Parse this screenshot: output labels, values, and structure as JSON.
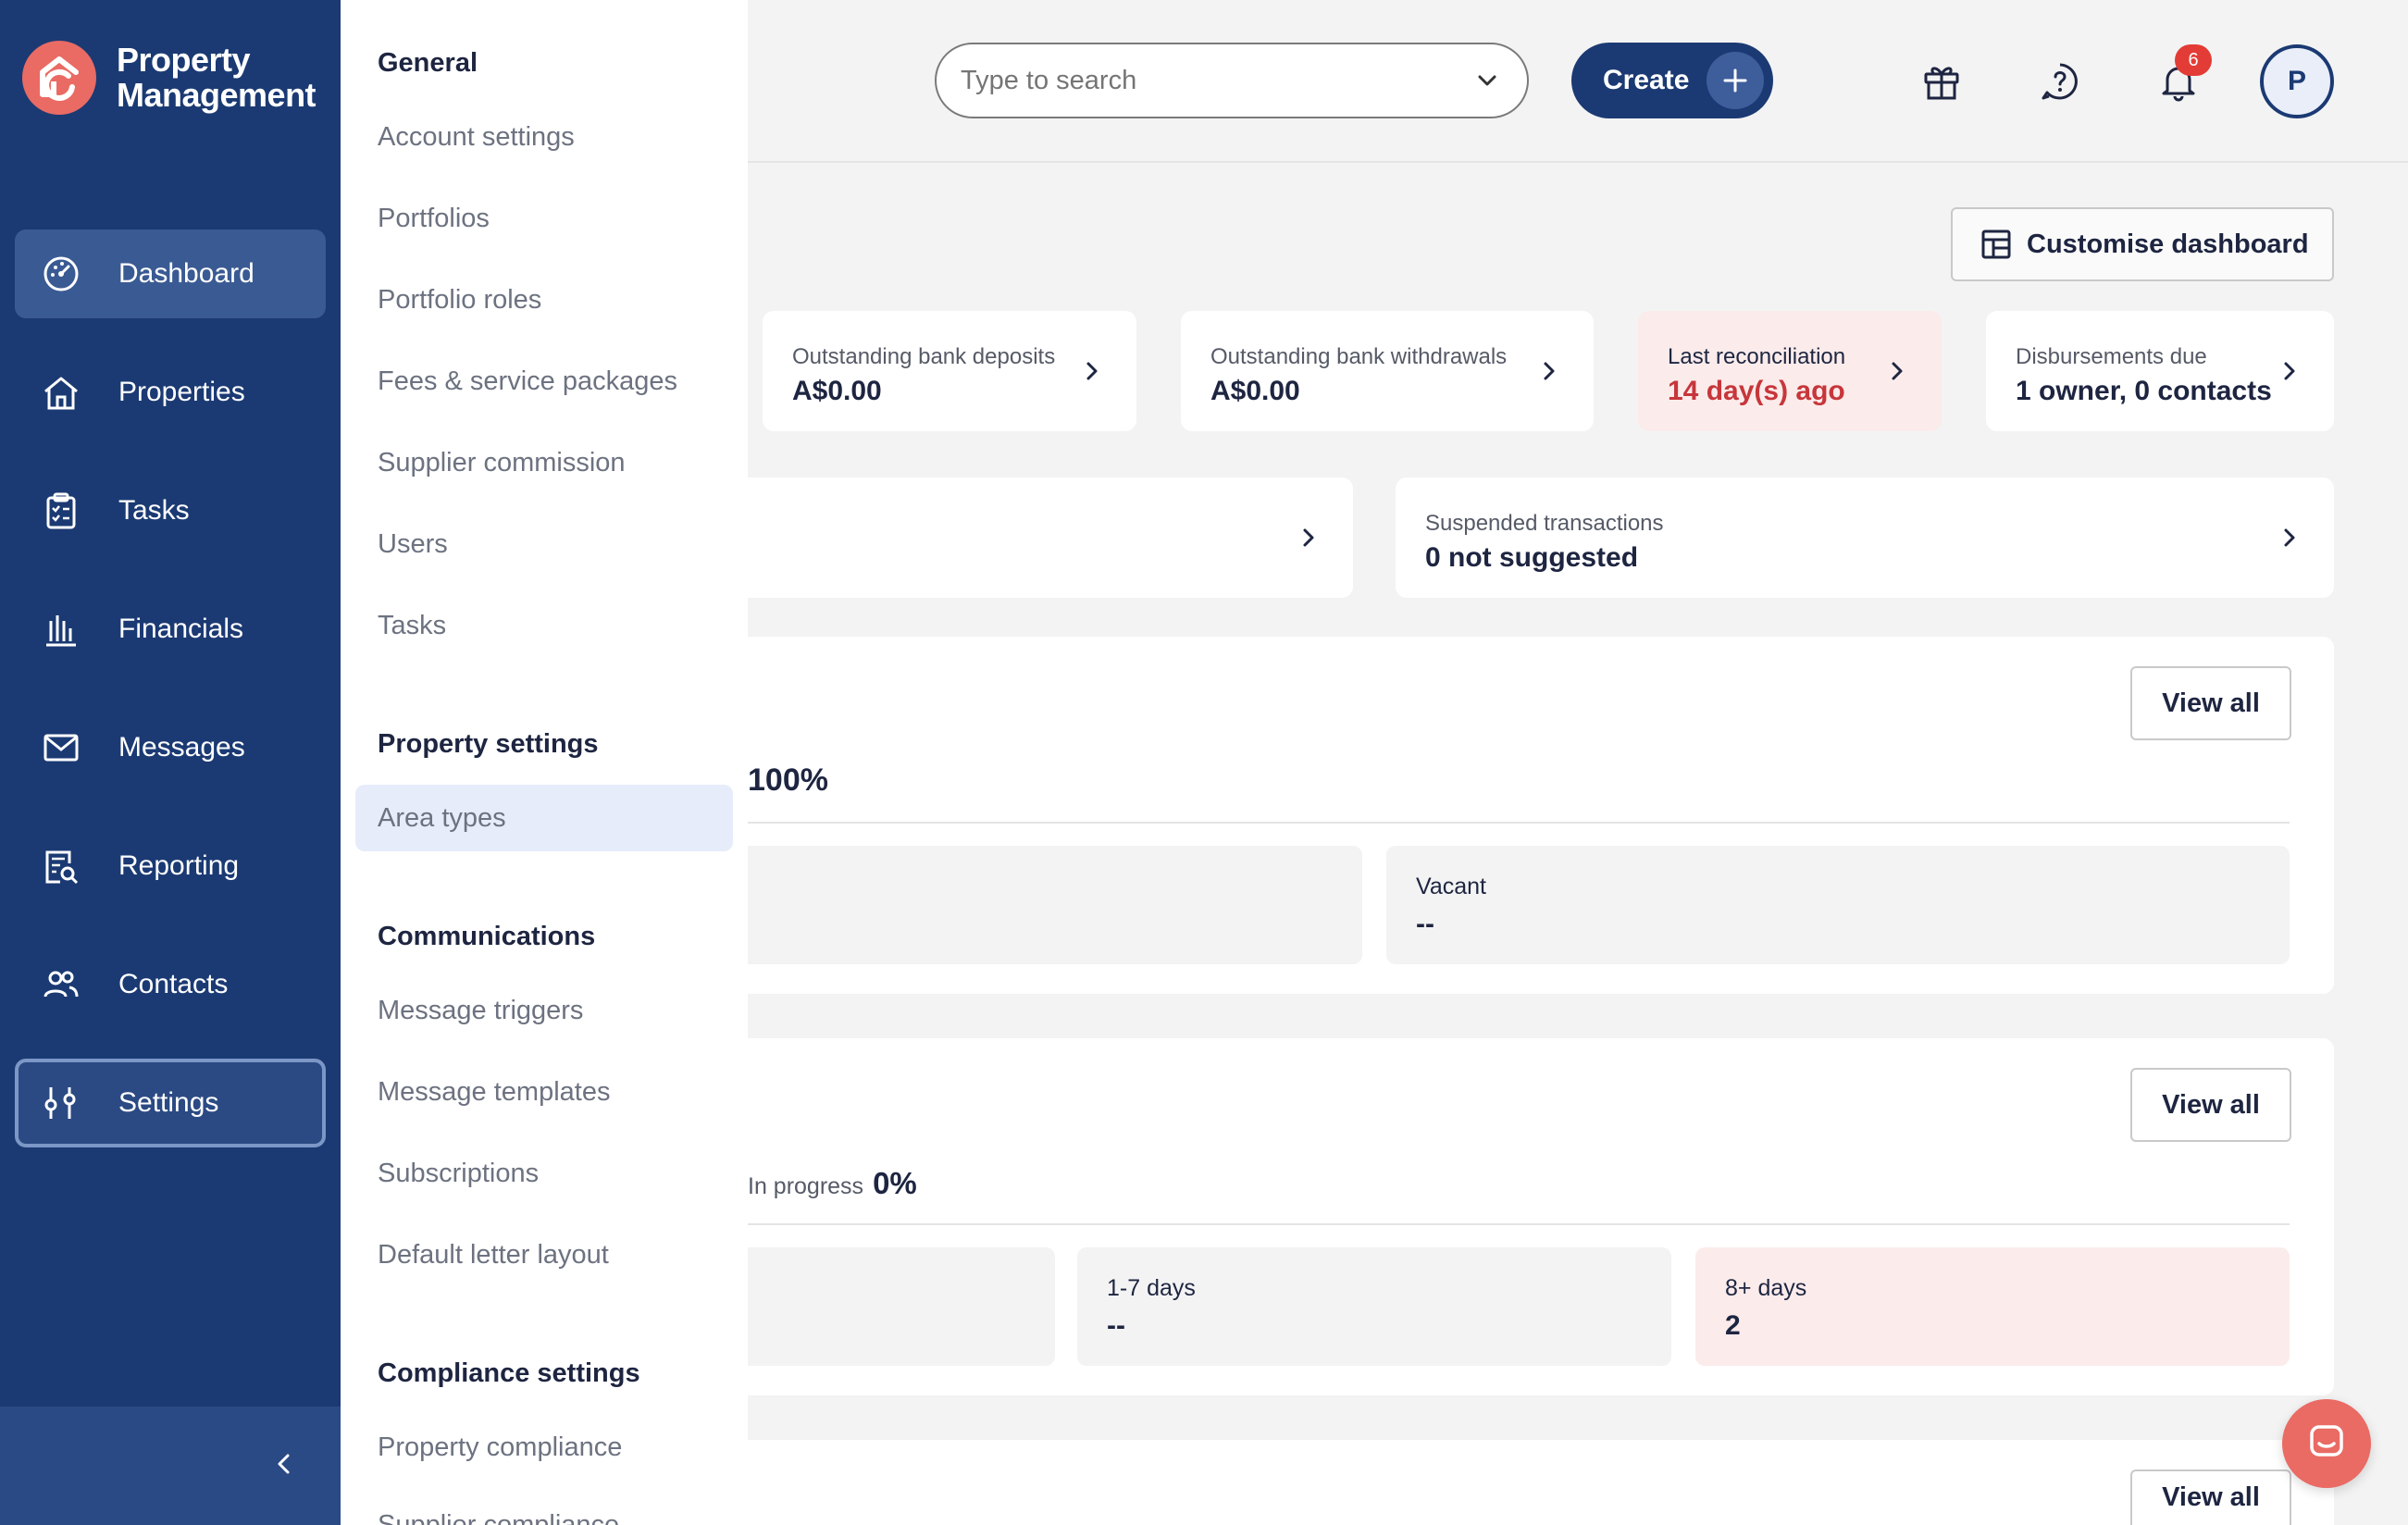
{
  "app": {
    "name_line1": "Property",
    "name_line2": "Management"
  },
  "sidebar": {
    "items": [
      {
        "label": "Dashboard",
        "icon": "dashboard-gauge-icon"
      },
      {
        "label": "Properties",
        "icon": "house-icon"
      },
      {
        "label": "Tasks",
        "icon": "clipboard-checklist-icon"
      },
      {
        "label": "Financials",
        "icon": "bank-building-icon"
      },
      {
        "label": "Messages",
        "icon": "envelope-icon"
      },
      {
        "label": "Reporting",
        "icon": "report-search-icon"
      },
      {
        "label": "Contacts",
        "icon": "people-icon"
      },
      {
        "label": "Settings",
        "icon": "sliders-icon"
      }
    ],
    "collapse_icon": "chevron-left-icon"
  },
  "settings_panel": {
    "general_heading": "General",
    "general_items": [
      "Account settings",
      "Portfolios",
      "Portfolio roles",
      "Fees & service packages",
      "Supplier commission",
      "Users",
      "Tasks"
    ],
    "property_heading": "Property settings",
    "property_items": [
      "Area types"
    ],
    "communications_heading": "Communications",
    "communications_items": [
      "Message triggers",
      "Message templates",
      "Subscriptions",
      "Default letter layout"
    ],
    "compliance_heading": "Compliance settings",
    "compliance_items": [
      "Property compliance",
      "Supplier compliance"
    ]
  },
  "topbar": {
    "search_placeholder": "Type to search",
    "create_label": "Create",
    "notification_count": "6",
    "avatar_initial": "P",
    "icons": [
      "gift-icon",
      "help-icon",
      "bell-icon"
    ]
  },
  "main": {
    "customise_label": "Customise dashboard",
    "stats": [
      {
        "label": "Outstanding bank deposits",
        "value": "A$0.00"
      },
      {
        "label": "Outstanding bank withdrawals",
        "value": "A$0.00"
      },
      {
        "label": "Last reconciliation",
        "value": "14 day(s) ago"
      },
      {
        "label": "Disbursements due",
        "value": "1 owner, 0 contacts"
      }
    ],
    "suspended": {
      "label": "Suspended transactions",
      "value": "0 not suggested"
    },
    "occupancy": {
      "percent_fragment": "100%",
      "view_all": "View all",
      "vacant_label": "Vacant",
      "vacant_value": "--"
    },
    "tasks": {
      "in_progress_label": "In progress",
      "in_progress_value": "0%",
      "view_all": "View all",
      "bucket_1_label": "1-7 days",
      "bucket_1_value": "--",
      "bucket_2_label": "8+ days",
      "bucket_2_value": "2"
    },
    "third_view_all": "View all"
  },
  "colors": {
    "sidebar": "#1b3a73",
    "accent": "#e96b63",
    "alert_bg": "#fbeceb",
    "alert_text": "#c6363a"
  }
}
